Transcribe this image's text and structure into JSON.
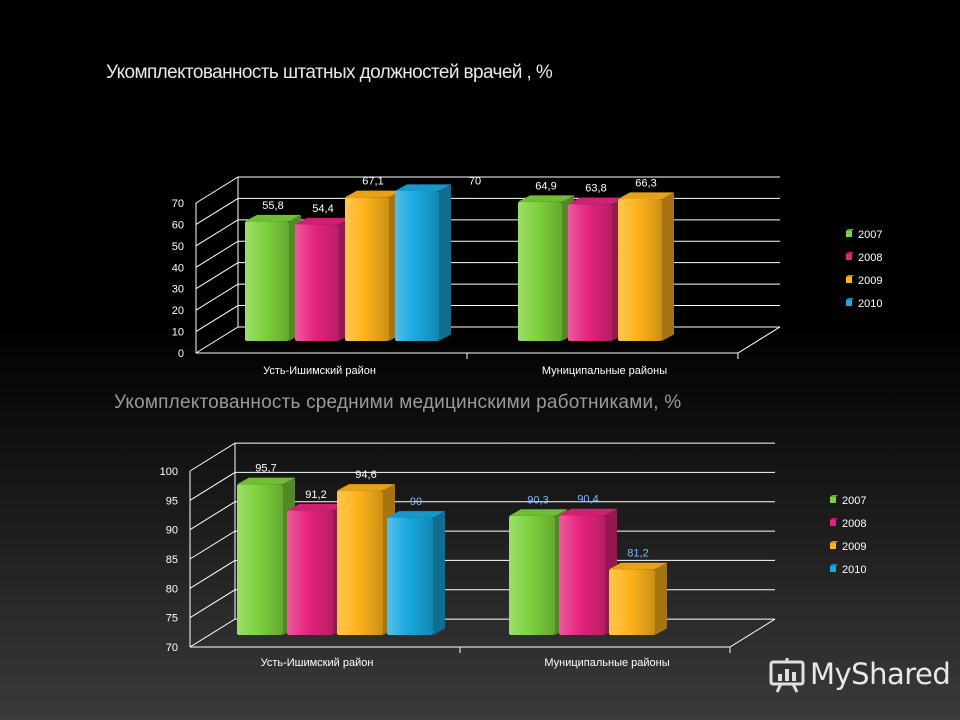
{
  "slide_title": "Укомплектованность штатных должностей врачей , %",
  "chart2_heading": "Укомплектованность средними медицинскими работниками, %",
  "brand": "MyShared",
  "chart_data": [
    {
      "type": "bar",
      "title": "Укомплектованность штатных должностей врачей , %",
      "categories": [
        "Усть-Ишимский район",
        "Муниципальные районы"
      ],
      "series": [
        {
          "name": "2007",
          "color": "#7dd23c",
          "values": [
            55.8,
            64.9
          ]
        },
        {
          "name": "2008",
          "color": "#e6247e",
          "values": [
            54.4,
            63.8
          ]
        },
        {
          "name": "2009",
          "color": "#ffb31a",
          "values": [
            67.1,
            66.3
          ]
        },
        {
          "name": "2010",
          "color": "#19a9df",
          "values": [
            70,
            null
          ]
        }
      ],
      "value_labels": [
        [
          "55,8",
          "64,9"
        ],
        [
          "54,4",
          "63,8"
        ],
        [
          "67,1",
          "66,3"
        ],
        [
          "70",
          ""
        ]
      ],
      "yticks": [
        "0",
        "10",
        "20",
        "30",
        "40",
        "50",
        "60",
        "70"
      ],
      "ylim": [
        0,
        70
      ],
      "legend": "right",
      "grid": true
    },
    {
      "type": "bar",
      "title": "Укомплектованность средними медицинскими работниками, %",
      "categories": [
        "Усть-Ишимский район",
        "Муниципальные районы"
      ],
      "series": [
        {
          "name": "2007",
          "color": "#7dd23c",
          "values": [
            95.7,
            90.3
          ]
        },
        {
          "name": "2008",
          "color": "#e6247e",
          "values": [
            91.2,
            90.4
          ]
        },
        {
          "name": "2009",
          "color": "#ffb31a",
          "values": [
            94.6,
            81.2
          ]
        },
        {
          "name": "2010",
          "color": "#19a9df",
          "values": [
            90,
            null
          ]
        }
      ],
      "value_labels": [
        [
          "95,7",
          "90,3"
        ],
        [
          "91,2",
          "90,4"
        ],
        [
          "94,6",
          "81,2"
        ],
        [
          "90",
          ""
        ]
      ],
      "yticks": [
        "70",
        "75",
        "80",
        "85",
        "90",
        "95",
        "100"
      ],
      "ylim": [
        70,
        100
      ],
      "legend": "right",
      "grid": true
    }
  ]
}
